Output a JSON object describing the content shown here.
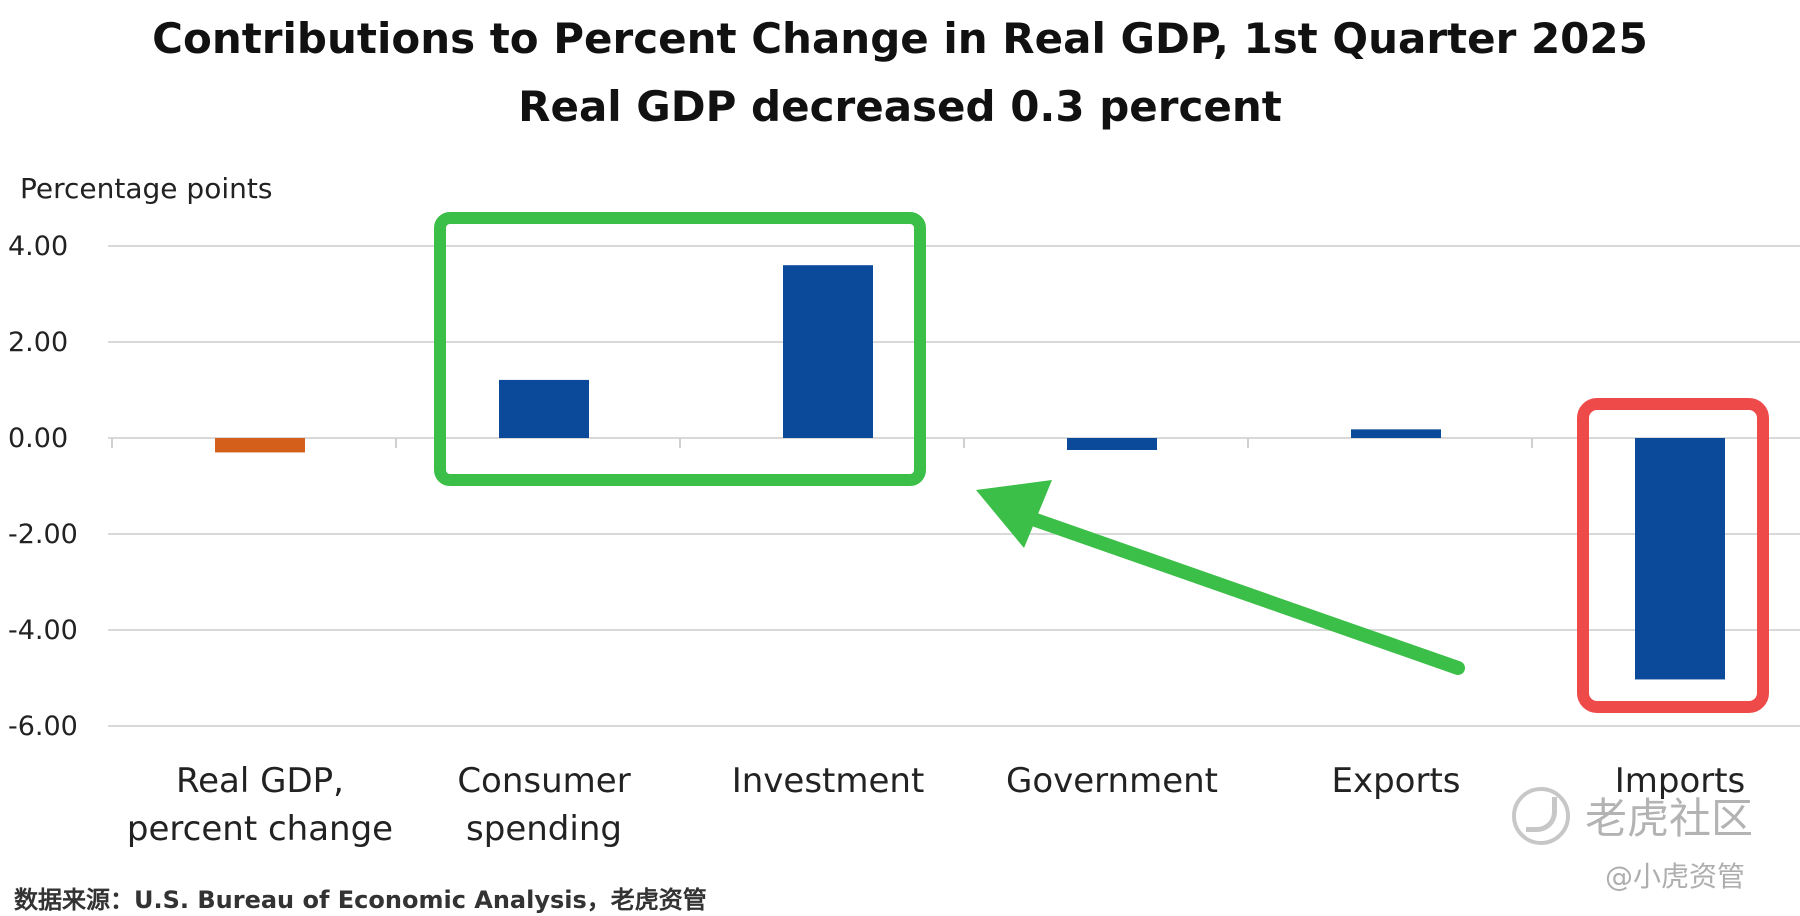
{
  "chart_data": {
    "type": "bar",
    "title": "Contributions to Percent Change in Real GDP, 1st Quarter 2025",
    "subtitle": "Real GDP decreased 0.3 percent",
    "ylabel": "Percentage points",
    "xlabel": "",
    "ylim": [
      -6,
      4
    ],
    "yticks": [
      4,
      2,
      0,
      -2,
      -4,
      -6
    ],
    "ytick_labels": [
      "4.00",
      "2.00",
      "0.00",
      "-2.00",
      "-4.00",
      "-6.00"
    ],
    "grid": true,
    "categories": [
      [
        "Real GDP,",
        "percent change"
      ],
      [
        "Consumer",
        "spending"
      ],
      [
        "Investment"
      ],
      [
        "Government"
      ],
      [
        "Exports"
      ],
      [
        "Imports"
      ]
    ],
    "values": [
      -0.3,
      1.21,
      3.6,
      -0.25,
      0.18,
      -5.03
    ],
    "colors": [
      "#d35f1b",
      "#0b4a9a",
      "#0b4a9a",
      "#0b4a9a",
      "#0b4a9a",
      "#0b4a9a"
    ],
    "annotations": {
      "highlight_box_color": "#3bbf48",
      "imports_box_color": "#ee4a4a",
      "arrow_color": "#3bbf48"
    }
  },
  "footer": "数据来源：U.S. Bureau of Economic Analysis，老虎资管",
  "watermark": {
    "main": "老虎社区",
    "sub": "@小虎资管"
  }
}
